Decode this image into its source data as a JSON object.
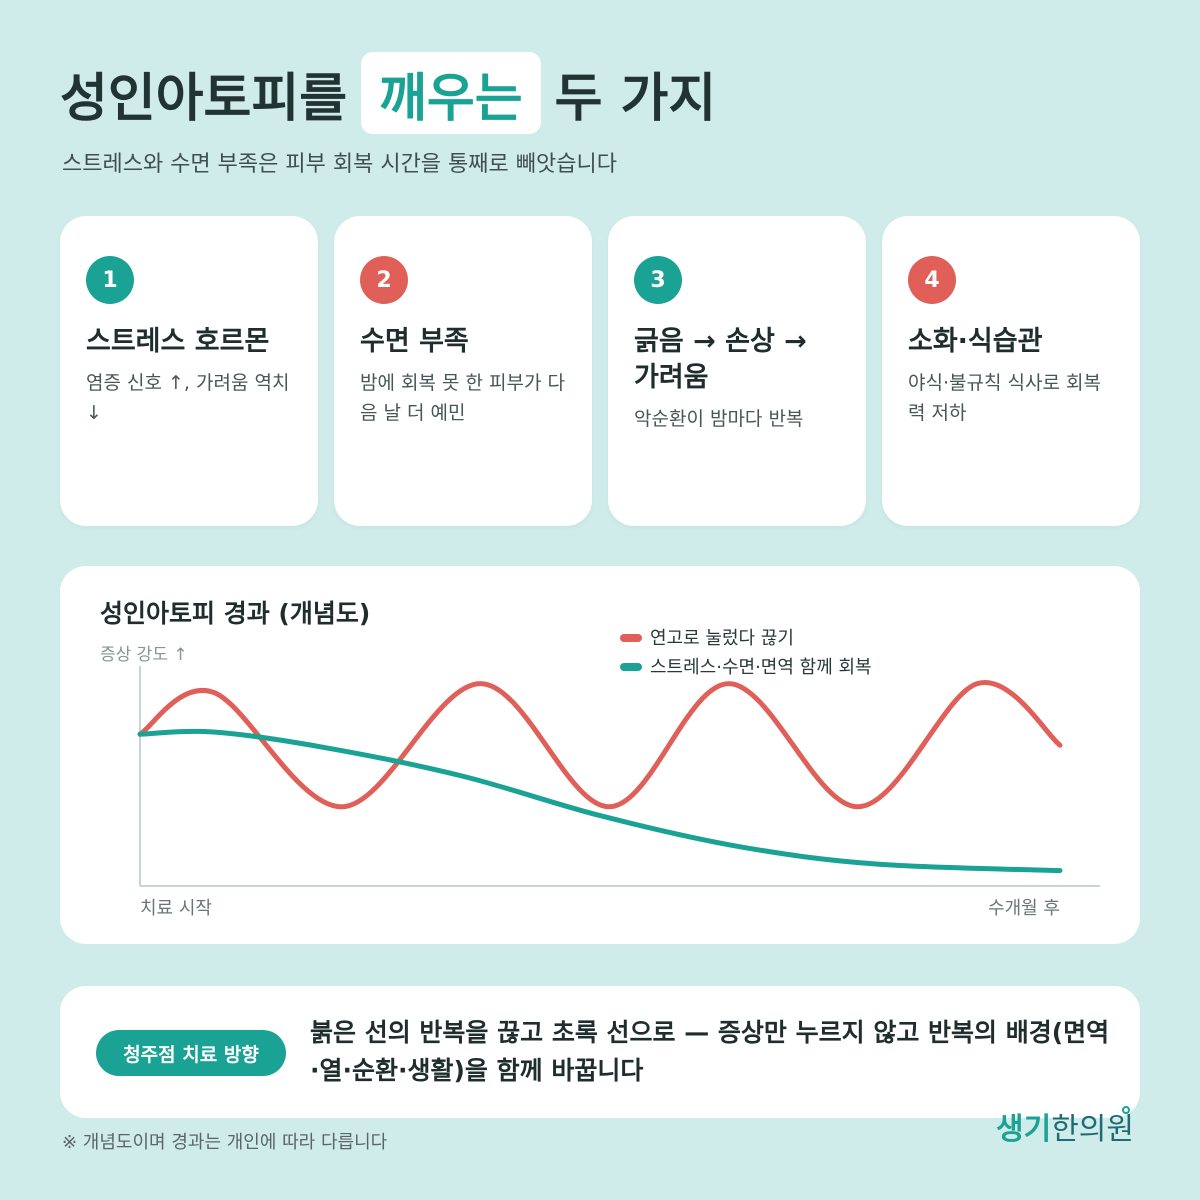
{
  "header": {
    "title_before": "성인아토피를",
    "title_highlight": "깨우는",
    "title_after": "두 가지",
    "subtitle": "스트레스와 수면 부족은 피부 회복 시간을 통째로 빼앗습니다"
  },
  "cards": [
    {
      "number": "1",
      "title": "스트레스 호르몬",
      "desc": "염증 신호 ↑, 가려움 역치 ↓",
      "color": "#1aa394"
    },
    {
      "number": "2",
      "title": "수면 부족",
      "desc": "밤에 회복 못 한 피부가 다음 날 더 예민",
      "color": "#e06059"
    },
    {
      "number": "3",
      "title": "긁음 → 손상 →\n가려움",
      "desc": "악순환이 밤마다 반복",
      "color": "#1aa394"
    },
    {
      "number": "4",
      "title": "소화·식습관",
      "desc": "야식·불규칙 식사로 회복력 저하",
      "color": "#e06059"
    }
  ],
  "chart": {
    "title": "성인아토피 경과 (개념도)",
    "ylabel": "증상 강도 ↑",
    "legend": [
      "연고로 눌렀다 끊기",
      "스트레스·수면·면역 함께 회복"
    ]
  },
  "chart_data": {
    "type": "line",
    "title": "성인아토피 경과 (개념도)",
    "ylabel": "증상 강도 ↑",
    "x_tick_labels": [
      "치료 시작",
      "수개월 후"
    ],
    "xlim": [
      0,
      1
    ],
    "ylim": [
      0,
      1
    ],
    "grid": false,
    "legend_position": "top-right",
    "series": [
      {
        "name": "연고로 눌렀다 끊기",
        "color": "#e06059",
        "x": [
          0.0,
          0.08,
          0.22,
          0.37,
          0.51,
          0.64,
          0.78,
          0.91,
          1.0
        ],
        "y": [
          0.69,
          0.88,
          0.36,
          0.92,
          0.36,
          0.92,
          0.36,
          0.92,
          0.64
        ]
      },
      {
        "name": "스트레스·수면·면역 함께 회복",
        "color": "#1aa394",
        "x": [
          0.0,
          0.08,
          0.2,
          0.35,
          0.5,
          0.65,
          0.8,
          1.0
        ],
        "y": [
          0.69,
          0.7,
          0.63,
          0.5,
          0.32,
          0.18,
          0.1,
          0.07
        ]
      }
    ]
  },
  "banner": {
    "pill": "청주점 치료 방향",
    "text": "붉은 선의 반복을 끊고 초록 선으로 — 증상만 누르지 않고 반복의 배경(면역·열·순환·생활)을 함께 바꿉니다"
  },
  "footnote": "※ 개념도이며 경과는 개인에 따라 다릅니다",
  "logo": {
    "part1": "생기",
    "part2": "한의원"
  }
}
